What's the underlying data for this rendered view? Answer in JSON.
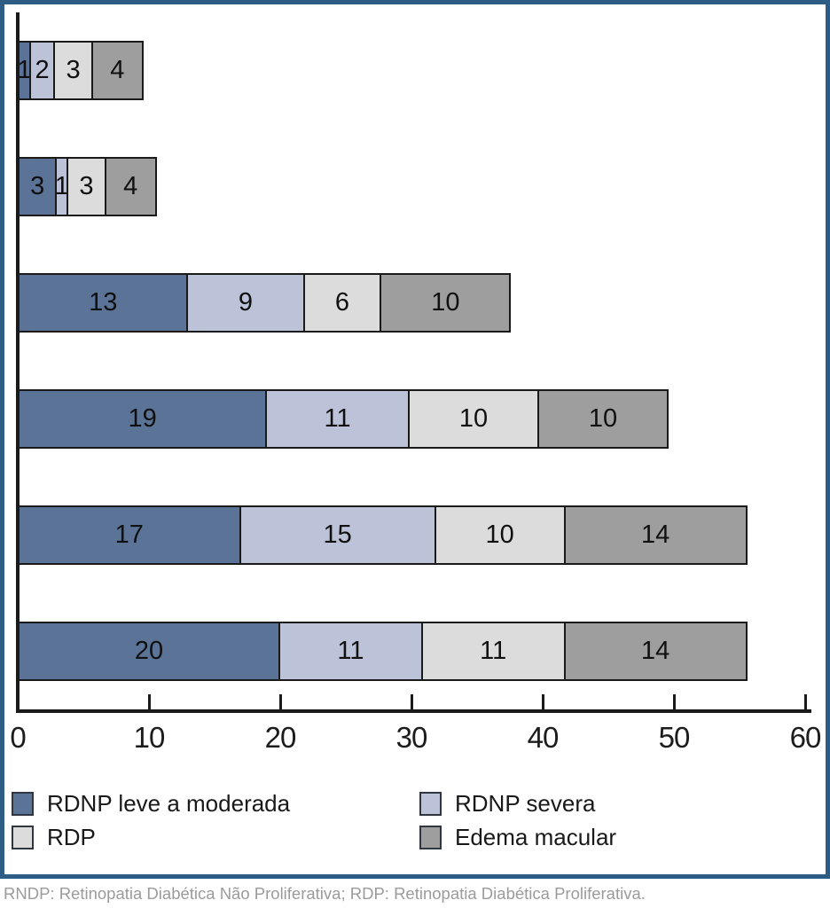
{
  "chart_data": {
    "type": "bar",
    "subtype": "horizontal_stacked",
    "title": "",
    "xlabel": "",
    "ylabel": "",
    "xlim": [
      0,
      60
    ],
    "x_ticks": [
      0,
      10,
      20,
      30,
      40,
      50,
      60
    ],
    "grid": false,
    "bar_order": "top_to_bottom",
    "categories": [
      "bar-1",
      "bar-2",
      "bar-3",
      "bar-4",
      "bar-5",
      "bar-6"
    ],
    "series": [
      {
        "name": "RDNP leve a moderada",
        "color": "#5a7397",
        "values": [
          1,
          3,
          13,
          19,
          17,
          20
        ]
      },
      {
        "name": "RDNP severa",
        "color": "#bcc2d7",
        "values": [
          2,
          1,
          9,
          11,
          15,
          11
        ]
      },
      {
        "name": "RDP",
        "color": "#dcdcdc",
        "values": [
          3,
          3,
          6,
          10,
          10,
          11
        ]
      },
      {
        "name": "Edema macular",
        "color": "#9e9e9e",
        "values": [
          4,
          4,
          10,
          10,
          14,
          14
        ]
      }
    ],
    "bar_totals": [
      10,
      11,
      38,
      50,
      56,
      56
    ],
    "legend_position": "bottom",
    "axis_color": "#1a1a1a",
    "frame_color": "#2d5c85"
  },
  "legend": {
    "item1": "RDNP leve a moderada",
    "item2": "RDNP severa",
    "item3": "RDP",
    "item4": "Edema macular"
  },
  "footnote": "RNDP: Retinopatia Diabética Não Proliferativa; RDP: Retinopatia Diabética Proliferativa."
}
